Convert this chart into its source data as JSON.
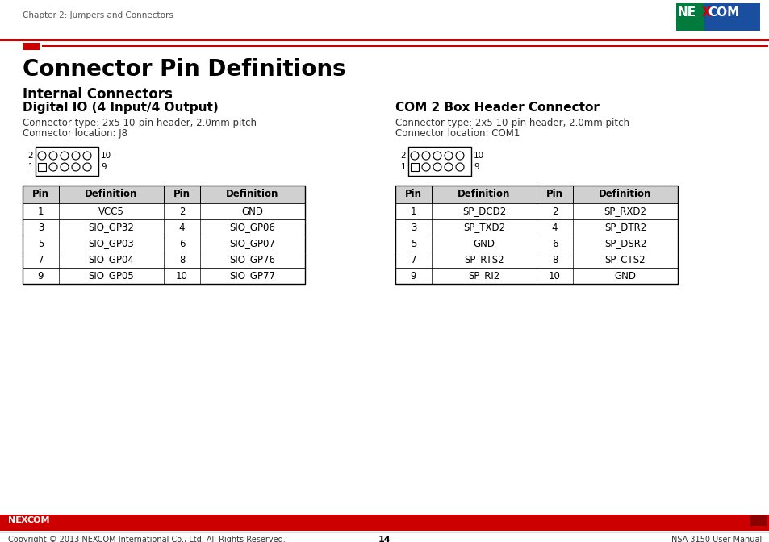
{
  "page_title": "Connector Pin Definitions",
  "section_title": "Internal Connectors",
  "header_chapter": "Chapter 2: Jumpers and Connectors",
  "subsection1_title": "Digital IO (4 Input/4 Output)",
  "subsection1_type": "Connector type: 2x5 10-pin header, 2.0mm pitch",
  "subsection1_loc": "Connector location: J8",
  "subsection2_title": "COM 2 Box Header Connector",
  "subsection2_type": "Connector type: 2x5 10-pin header, 2.0mm pitch",
  "subsection2_loc": "Connector location: COM1",
  "table1_headers": [
    "Pin",
    "Definition",
    "Pin",
    "Definition"
  ],
  "table1_rows": [
    [
      "1",
      "VCC5",
      "2",
      "GND"
    ],
    [
      "3",
      "SIO_GP32",
      "4",
      "SIO_GP06"
    ],
    [
      "5",
      "SIO_GP03",
      "6",
      "SIO_GP07"
    ],
    [
      "7",
      "SIO_GP04",
      "8",
      "SIO_GP76"
    ],
    [
      "9",
      "SIO_GP05",
      "10",
      "SIO_GP77"
    ]
  ],
  "table2_headers": [
    "Pin",
    "Definition",
    "Pin",
    "Definition"
  ],
  "table2_rows": [
    [
      "1",
      "SP_DCD2",
      "2",
      "SP_RXD2"
    ],
    [
      "3",
      "SP_TXD2",
      "4",
      "SP_DTR2"
    ],
    [
      "5",
      "GND",
      "6",
      "SP_DSR2"
    ],
    [
      "7",
      "SP_RTS2",
      "8",
      "SP_CTS2"
    ],
    [
      "9",
      "SP_RI2",
      "10",
      "GND"
    ]
  ],
  "footer_copyright": "Copyright © 2013 NEXCOM International Co., Ltd. All Rights Reserved.",
  "footer_page": "14",
  "footer_right": "NSA 3150 User Manual",
  "logo_blue": "#1A4FA0",
  "logo_green": "#007A3D",
  "logo_red_x": "#CC0000",
  "red_bar": "#CC0000",
  "table_header_bg": "#d0d0d0",
  "footer_red": "#CC0000"
}
